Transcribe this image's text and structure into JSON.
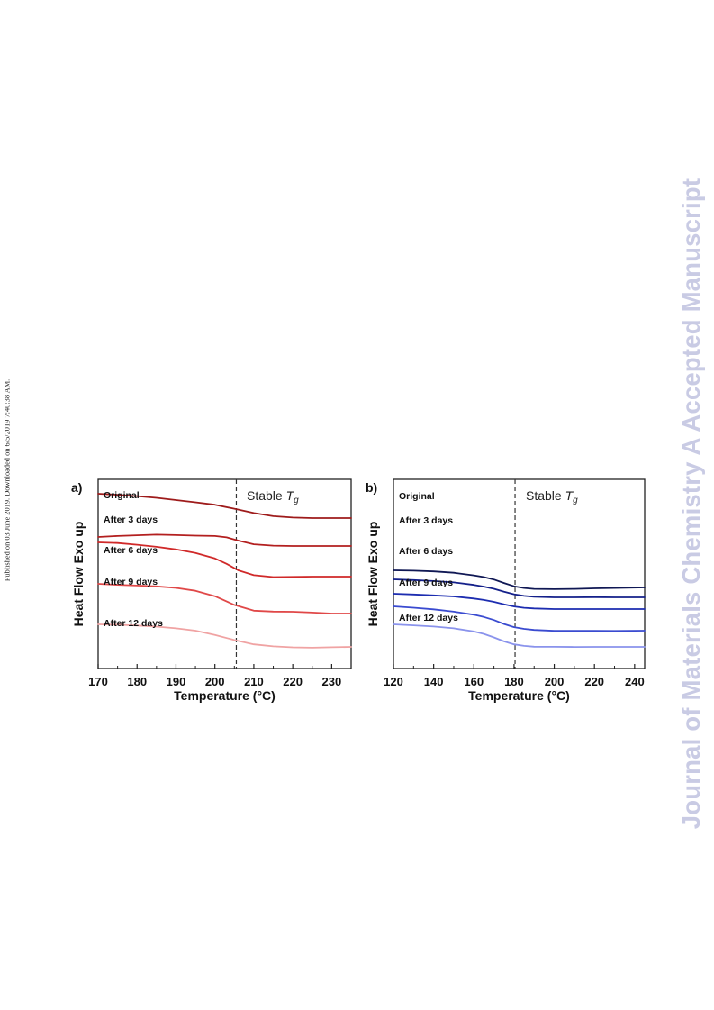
{
  "side_note": "Published on 03 June 2019. Downloaded on 6/5/2019 7:40:38 AM.",
  "watermark": "Journal of Materials Chemistry A Accepted Manuscript",
  "chart_data": [
    {
      "type": "line",
      "panel_label": "a)",
      "xlabel": "Temperature (°C)",
      "ylabel": "Heat Flow Exo up",
      "xlim": [
        170,
        235
      ],
      "ylim": [
        0,
        1
      ],
      "xticks": [
        170,
        180,
        190,
        200,
        210,
        220,
        230
      ],
      "grid": false,
      "annotation": {
        "text": "Stable T",
        "sub": "g",
        "x": 205.5
      },
      "series": [
        {
          "name": "Original",
          "color": "#9e1b1b",
          "x": [
            170,
            175,
            180,
            185,
            190,
            195,
            200,
            205,
            210,
            215,
            220,
            225,
            230,
            235
          ],
          "y": [
            0.907,
            0.898,
            0.886,
            0.87,
            0.85,
            0.829,
            0.807,
            0.771,
            0.732,
            0.703,
            0.691,
            0.686,
            0.686,
            0.686
          ]
        },
        {
          "name": "After 3 days",
          "color": "#b31f1f",
          "x": [
            170,
            175,
            180,
            185,
            190,
            195,
            200,
            203,
            206,
            210,
            215,
            220,
            225,
            230,
            235
          ],
          "y": [
            0.559,
            0.564,
            0.568,
            0.571,
            0.569,
            0.566,
            0.564,
            0.557,
            0.54,
            0.521,
            0.514,
            0.512,
            0.512,
            0.512,
            0.512
          ]
        },
        {
          "name": "After 6 days",
          "color": "#d02929",
          "x": [
            170,
            175,
            180,
            185,
            190,
            195,
            200,
            203,
            206,
            210,
            215,
            220,
            225,
            230,
            235
          ],
          "y": [
            0.447,
            0.443,
            0.431,
            0.417,
            0.399,
            0.375,
            0.338,
            0.301,
            0.257,
            0.224,
            0.211,
            0.212,
            0.214,
            0.214,
            0.214
          ]
        },
        {
          "name": "After 9 days",
          "color": "#e04848",
          "x": [
            170,
            175,
            180,
            185,
            190,
            195,
            200,
            205,
            210,
            215,
            220,
            225,
            230,
            235
          ],
          "y": [
            0.228,
            0.221,
            0.216,
            0.21,
            0.199,
            0.178,
            0.139,
            0.076,
            0.035,
            0.028,
            0.027,
            0.021,
            0.014,
            0.014
          ]
        },
        {
          "name": "After 12 days",
          "color": "#f0a3a3",
          "x": [
            170,
            175,
            180,
            185,
            190,
            195,
            200,
            205,
            210,
            215,
            220,
            225,
            230,
            235
          ],
          "y": [
            -0.059,
            -0.062,
            -0.069,
            -0.078,
            -0.093,
            -0.113,
            -0.149,
            -0.193,
            -0.23,
            -0.247,
            -0.256,
            -0.259,
            -0.255,
            -0.252
          ]
        }
      ]
    },
    {
      "type": "line",
      "panel_label": "b)",
      "xlabel": "Temperature (°C)",
      "ylabel": "Heat Flow Exo up",
      "xlim": [
        120,
        245
      ],
      "ylim": [
        0,
        1
      ],
      "xticks": [
        120,
        140,
        160,
        180,
        200,
        220,
        240
      ],
      "grid": false,
      "annotation": {
        "text": "Stable T",
        "sub": "g",
        "x": 180.5
      },
      "series": [
        {
          "name": "Original",
          "color": "#101854",
          "x": [
            120,
            130,
            140,
            150,
            160,
            165,
            170,
            175,
            180,
            185,
            190,
            200,
            210,
            220,
            230,
            245
          ],
          "y": [
            0.907,
            0.904,
            0.898,
            0.886,
            0.864,
            0.849,
            0.828,
            0.798,
            0.77,
            0.755,
            0.748,
            0.745,
            0.748,
            0.752,
            0.755,
            0.76
          ]
        },
        {
          "name": "After 3 days",
          "color": "#14208a",
          "x": [
            120,
            130,
            140,
            150,
            160,
            165,
            170,
            175,
            180,
            185,
            190,
            200,
            210,
            220,
            230,
            245
          ],
          "y": [
            0.76,
            0.753,
            0.743,
            0.73,
            0.706,
            0.689,
            0.668,
            0.64,
            0.615,
            0.599,
            0.59,
            0.585,
            0.585,
            0.587,
            0.585,
            0.585
          ]
        },
        {
          "name": "After 6 days",
          "color": "#1d2db0",
          "x": [
            120,
            130,
            140,
            150,
            160,
            165,
            170,
            175,
            180,
            185,
            190,
            200,
            210,
            220,
            230,
            245
          ],
          "y": [
            0.603,
            0.596,
            0.587,
            0.576,
            0.555,
            0.54,
            0.521,
            0.496,
            0.474,
            0.461,
            0.454,
            0.448,
            0.448,
            0.448,
            0.448,
            0.448
          ]
        },
        {
          "name": "After 9 days",
          "color": "#3a4bd0",
          "x": [
            120,
            130,
            140,
            150,
            160,
            165,
            170,
            175,
            180,
            185,
            190,
            200,
            210,
            220,
            230,
            245
          ],
          "y": [
            0.379,
            0.369,
            0.357,
            0.34,
            0.318,
            0.301,
            0.279,
            0.25,
            0.227,
            0.214,
            0.206,
            0.2,
            0.2,
            0.2,
            0.199,
            0.201
          ]
        },
        {
          "name": "After 12 days",
          "color": "#8a93ec",
          "x": [
            120,
            130,
            140,
            150,
            160,
            165,
            170,
            175,
            180,
            185,
            190,
            200,
            210,
            220,
            230,
            245
          ],
          "y": [
            0.196,
            0.186,
            0.174,
            0.156,
            0.125,
            0.1,
            0.065,
            0.025,
            -0.005,
            -0.02,
            -0.028,
            -0.029,
            -0.031,
            -0.03,
            -0.03,
            -0.03
          ]
        }
      ]
    }
  ]
}
